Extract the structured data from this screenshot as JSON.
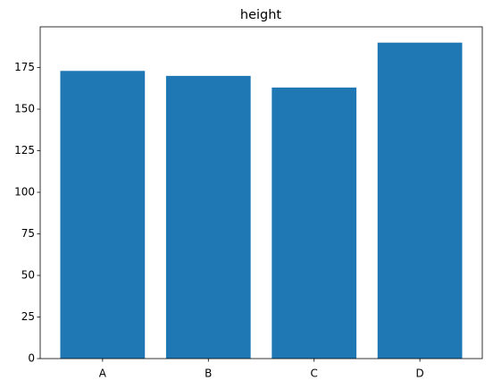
{
  "chart_data": {
    "type": "bar",
    "title": "height",
    "categories": [
      "A",
      "B",
      "C",
      "D"
    ],
    "values": [
      173,
      170,
      163,
      190
    ],
    "color": "#1f77b4",
    "ylim": [
      0,
      199.5
    ],
    "yticks": [
      0,
      25,
      50,
      75,
      100,
      125,
      150,
      175
    ]
  }
}
